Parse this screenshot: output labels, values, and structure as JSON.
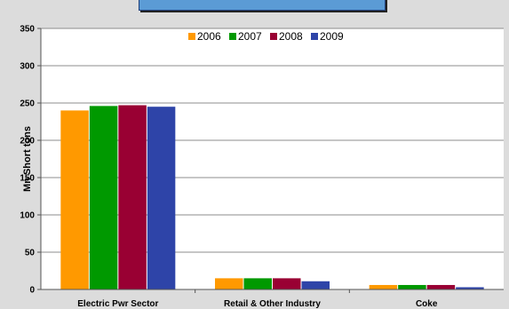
{
  "chart_data": {
    "type": "bar",
    "categories": [
      "Electric Pwr Sector",
      "Retail & Other Industry",
      "Coke"
    ],
    "series": [
      {
        "name": "2006",
        "color": "#ff9900",
        "values": [
          240,
          15,
          6
        ]
      },
      {
        "name": "2007",
        "color": "#009900",
        "values": [
          246,
          15,
          6
        ]
      },
      {
        "name": "2008",
        "color": "#990033",
        "values": [
          247,
          15,
          6
        ]
      },
      {
        "name": "2009",
        "color": "#2e44a8",
        "values": [
          245,
          11,
          3
        ]
      }
    ],
    "ylabel": "Mn Short tons",
    "ylim": [
      0,
      350
    ],
    "yticks": [
      0,
      50,
      100,
      150,
      200,
      250,
      300,
      350
    ],
    "grid": true,
    "legend_position": "top-right"
  }
}
